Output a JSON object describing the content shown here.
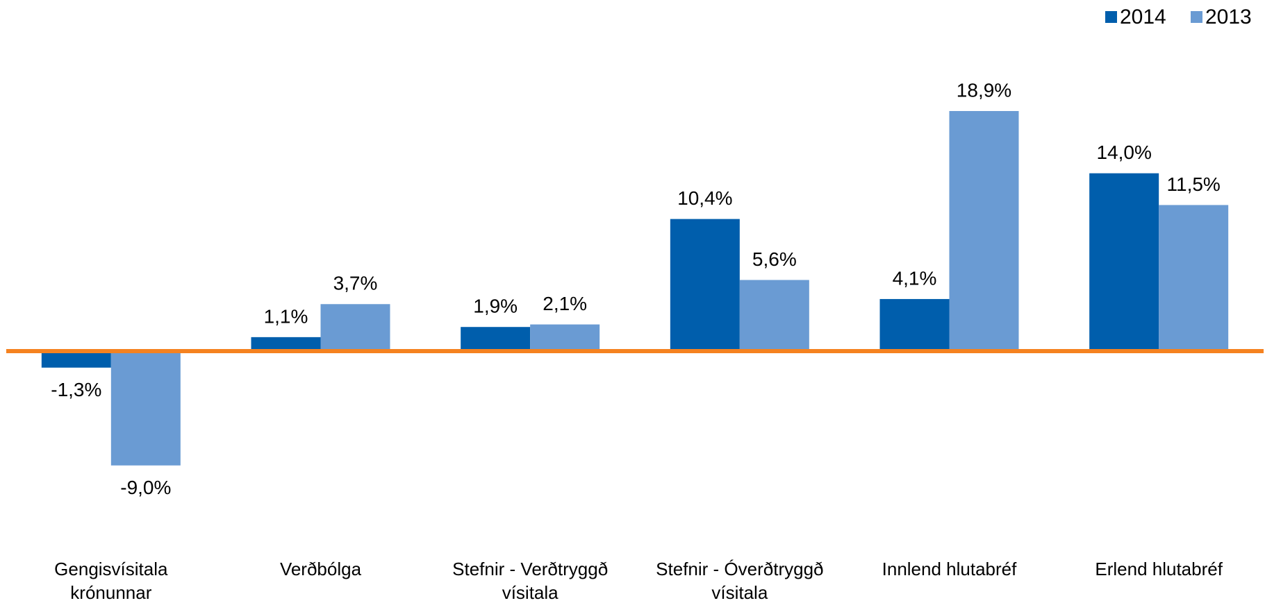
{
  "chart_data": {
    "type": "bar",
    "categories": [
      "Gengisvísitala krónunnar",
      "Verðbólga",
      "Stefnir - Verðtryggð vísitala",
      "Stefnir - Óverðtryggð vísitala",
      "Innlend hlutabréf",
      "Erlend hlutabréf"
    ],
    "series": [
      {
        "name": "2014",
        "color": "#005eac",
        "values": [
          -1.3,
          1.1,
          1.9,
          10.4,
          4.1,
          14.0
        ],
        "value_labels": [
          "-1,3%",
          "1,1%",
          "1,9%",
          "10,4%",
          "4,1%",
          "14,0%"
        ]
      },
      {
        "name": "2013",
        "color": "#6a9bd3",
        "values": [
          -9.0,
          3.7,
          2.1,
          5.6,
          18.9,
          11.5
        ],
        "value_labels": [
          "-9,0%",
          "3,7%",
          "2,1%",
          "5,6%",
          "18,9%",
          "11,5%"
        ]
      }
    ],
    "zero_line_color": "#f58220",
    "legend": "top-right"
  }
}
